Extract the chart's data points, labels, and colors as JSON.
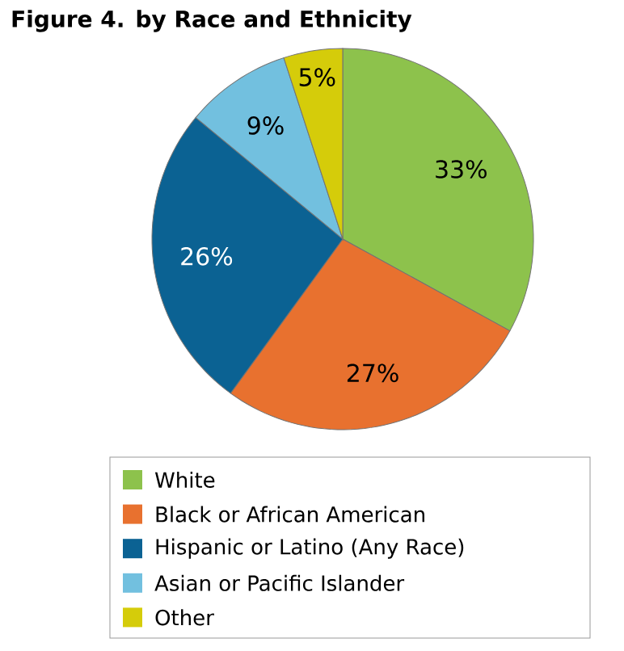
{
  "chart_data": {
    "type": "pie",
    "title": "Figure 4. by Race and Ethnicity",
    "categories": [
      "White",
      "Black or African American",
      "Hispanic or Latino (Any Race)",
      "Asian or Pacific Islander",
      "Other"
    ],
    "values": [
      33,
      27,
      26,
      9,
      5
    ],
    "colors": [
      "#8dc24c",
      "#e8712f",
      "#0b6293",
      "#72c0df",
      "#d5cc0a"
    ],
    "value_labels": [
      "33%",
      "27%",
      "26%",
      "9%",
      "5%"
    ],
    "legend": "bottom"
  }
}
